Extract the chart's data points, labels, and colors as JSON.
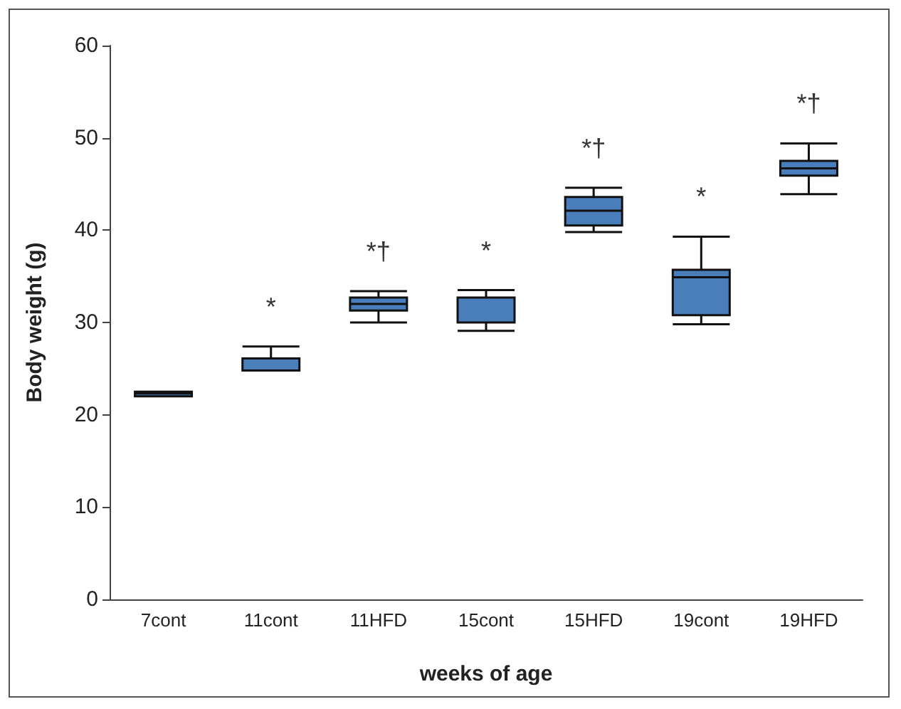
{
  "chart_data": {
    "type": "box",
    "xlabel": "weeks of age",
    "ylabel": "Body weight (g)",
    "categories": [
      "7cont",
      "11cont",
      "11HFD",
      "15cont",
      "15HFD",
      "19cont",
      "19HFD"
    ],
    "color": "#4a7ebb",
    "boxes": [
      {
        "low": 22.0,
        "q1": 22.0,
        "median": 22.3,
        "q3": 22.5,
        "high": 22.5
      },
      {
        "low": 24.8,
        "q1": 24.8,
        "median": 24.8,
        "q3": 26.1,
        "high": 27.4
      },
      {
        "low": 30.0,
        "q1": 31.3,
        "median": 32.0,
        "q3": 32.7,
        "high": 33.4
      },
      {
        "low": 29.1,
        "q1": 30.0,
        "median": 30.0,
        "q3": 32.7,
        "high": 33.5
      },
      {
        "low": 39.8,
        "q1": 40.5,
        "median": 42.1,
        "q3": 43.6,
        "high": 44.6
      },
      {
        "low": 29.8,
        "q1": 30.8,
        "median": 34.9,
        "q3": 35.7,
        "high": 39.3
      },
      {
        "low": 43.9,
        "q1": 45.9,
        "median": 46.7,
        "q3": 47.5,
        "high": 49.4
      }
    ],
    "ylim": [
      0,
      60
    ],
    "yticks": [
      0,
      10,
      20,
      30,
      40,
      50,
      60
    ],
    "grid": false,
    "annotations": [
      "*",
      "*†",
      "*",
      "*†",
      "*",
      "*†"
    ]
  }
}
